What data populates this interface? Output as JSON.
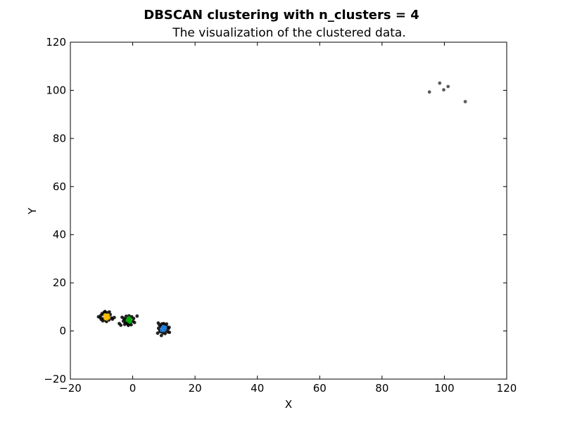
{
  "chart_data": {
    "type": "scatter",
    "title": "DBSCAN clustering with n_clusters = 4",
    "subtitle": "The visualization of the clustered data.",
    "xlabel": "X",
    "ylabel": "Y",
    "xlim": [
      -20,
      120
    ],
    "ylim": [
      -20,
      120
    ],
    "xticks": [
      -20,
      0,
      20,
      40,
      60,
      80,
      100,
      120
    ],
    "yticks": [
      -20,
      0,
      20,
      40,
      60,
      80,
      100,
      120
    ],
    "xtick_labels": [
      "−20",
      "0",
      "20",
      "40",
      "60",
      "80",
      "100",
      "120"
    ],
    "ytick_labels": [
      "−20",
      "0",
      "20",
      "40",
      "60",
      "80",
      "100",
      "120"
    ],
    "grid": false,
    "colors": {
      "noise": "#000000",
      "orange": "#ffc000",
      "green": "#00b000",
      "blue": "#1f7fe0",
      "outlier": "#404040"
    },
    "series": [
      {
        "color_key": "noise",
        "points": [
          [
            -10.2,
            6.5
          ],
          [
            -9.8,
            7.3
          ],
          [
            -9.5,
            5.1
          ],
          [
            -9.1,
            7.8
          ],
          [
            -8.7,
            4.4
          ],
          [
            -8.2,
            7.6
          ],
          [
            -7.9,
            5.9
          ],
          [
            -7.6,
            4.6
          ],
          [
            -10.4,
            5.6
          ],
          [
            -8.9,
            8.1
          ],
          [
            -7.2,
            6.8
          ],
          [
            -9.6,
            4.2
          ],
          [
            -6.8,
            5.4
          ],
          [
            -10.1,
            4.8
          ],
          [
            -8.4,
            3.9
          ],
          [
            -7.5,
            7.9
          ],
          [
            -6.5,
            4.9
          ],
          [
            -9.3,
            6.9
          ],
          [
            -11.0,
            5.9
          ],
          [
            -5.9,
            5.6
          ],
          [
            -2.8,
            5.2
          ],
          [
            -2.4,
            3.6
          ],
          [
            -2.1,
            6.1
          ],
          [
            -1.6,
            2.8
          ],
          [
            -1.2,
            6.3
          ],
          [
            -0.8,
            3.1
          ],
          [
            -0.3,
            5.9
          ],
          [
            0.1,
            4.0
          ],
          [
            -3.0,
            4.1
          ],
          [
            -2.6,
            2.7
          ],
          [
            -1.9,
            3.2
          ],
          [
            -0.5,
            2.6
          ],
          [
            0.3,
            5.2
          ],
          [
            -3.4,
            5.7
          ],
          [
            -1.4,
            2.3
          ],
          [
            0.6,
            3.5
          ],
          [
            -4.3,
            3.1
          ],
          [
            1.4,
            6.2
          ],
          [
            -3.8,
            2.4
          ],
          [
            -2.2,
            4.8
          ],
          [
            8.3,
            1.1
          ],
          [
            8.6,
            2.4
          ],
          [
            8.9,
            -0.3
          ],
          [
            9.3,
            2.9
          ],
          [
            9.7,
            -0.8
          ],
          [
            10.2,
            2.6
          ],
          [
            10.6,
            0.2
          ],
          [
            11.0,
            1.7
          ],
          [
            11.3,
            -0.4
          ],
          [
            9.1,
            1.8
          ],
          [
            10.9,
            2.9
          ],
          [
            8.7,
            0.1
          ],
          [
            11.4,
            0.9
          ],
          [
            9.9,
            3.1
          ],
          [
            10.4,
            -1.1
          ],
          [
            8.2,
            3.3
          ],
          [
            9.2,
            -1.9
          ],
          [
            11.7,
            1.5
          ],
          [
            11.8,
            -0.6
          ],
          [
            8.0,
            -0.9
          ]
        ]
      },
      {
        "color_key": "orange",
        "points": [
          [
            -9.0,
            6.0
          ],
          [
            -8.6,
            5.4
          ],
          [
            -8.4,
            6.4
          ],
          [
            -8.1,
            5.8
          ],
          [
            -8.8,
            5.1
          ],
          [
            -7.9,
            6.6
          ],
          [
            -8.3,
            4.9
          ],
          [
            -8.9,
            6.7
          ],
          [
            -7.7,
            5.5
          ]
        ]
      },
      {
        "color_key": "green",
        "points": [
          [
            -1.5,
            4.9
          ],
          [
            -1.2,
            4.3
          ],
          [
            -0.9,
            5.1
          ],
          [
            -1.1,
            3.9
          ],
          [
            -1.7,
            4.5
          ],
          [
            -0.7,
            4.6
          ],
          [
            -1.3,
            5.5
          ],
          [
            -0.9,
            3.6
          ]
        ]
      },
      {
        "color_key": "blue",
        "points": [
          [
            9.4,
            0.9
          ],
          [
            9.8,
            0.3
          ],
          [
            10.1,
            1.2
          ],
          [
            9.6,
            1.6
          ],
          [
            10.3,
            0.5
          ],
          [
            9.9,
            1.9
          ],
          [
            9.2,
            0.2
          ],
          [
            10.5,
            1.4
          ]
        ]
      },
      {
        "color_key": "outlier",
        "points": [
          [
            95.2,
            99.3
          ],
          [
            98.5,
            103.0
          ],
          [
            99.8,
            100.2
          ],
          [
            101.2,
            101.6
          ],
          [
            106.7,
            95.3
          ]
        ]
      }
    ]
  }
}
